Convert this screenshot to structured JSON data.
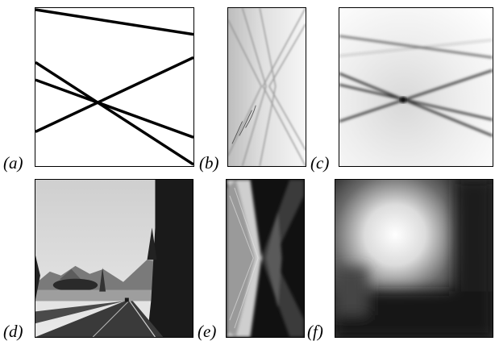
{
  "figure": {
    "panels": [
      {
        "id": "a",
        "label": "(a)",
        "content": "synthetic line image"
      },
      {
        "id": "b",
        "label": "(b)",
        "content": "transform of (a)"
      },
      {
        "id": "c",
        "label": "(c)",
        "content": "line accumulator map"
      },
      {
        "id": "d",
        "label": "(d)",
        "content": "road photograph"
      },
      {
        "id": "e",
        "label": "(e)",
        "content": "transform of (d)"
      },
      {
        "id": "f",
        "label": "(f)",
        "content": "blurred vanishing point map"
      }
    ],
    "colors": {
      "ink": "#000000",
      "background": "#ffffff"
    }
  }
}
